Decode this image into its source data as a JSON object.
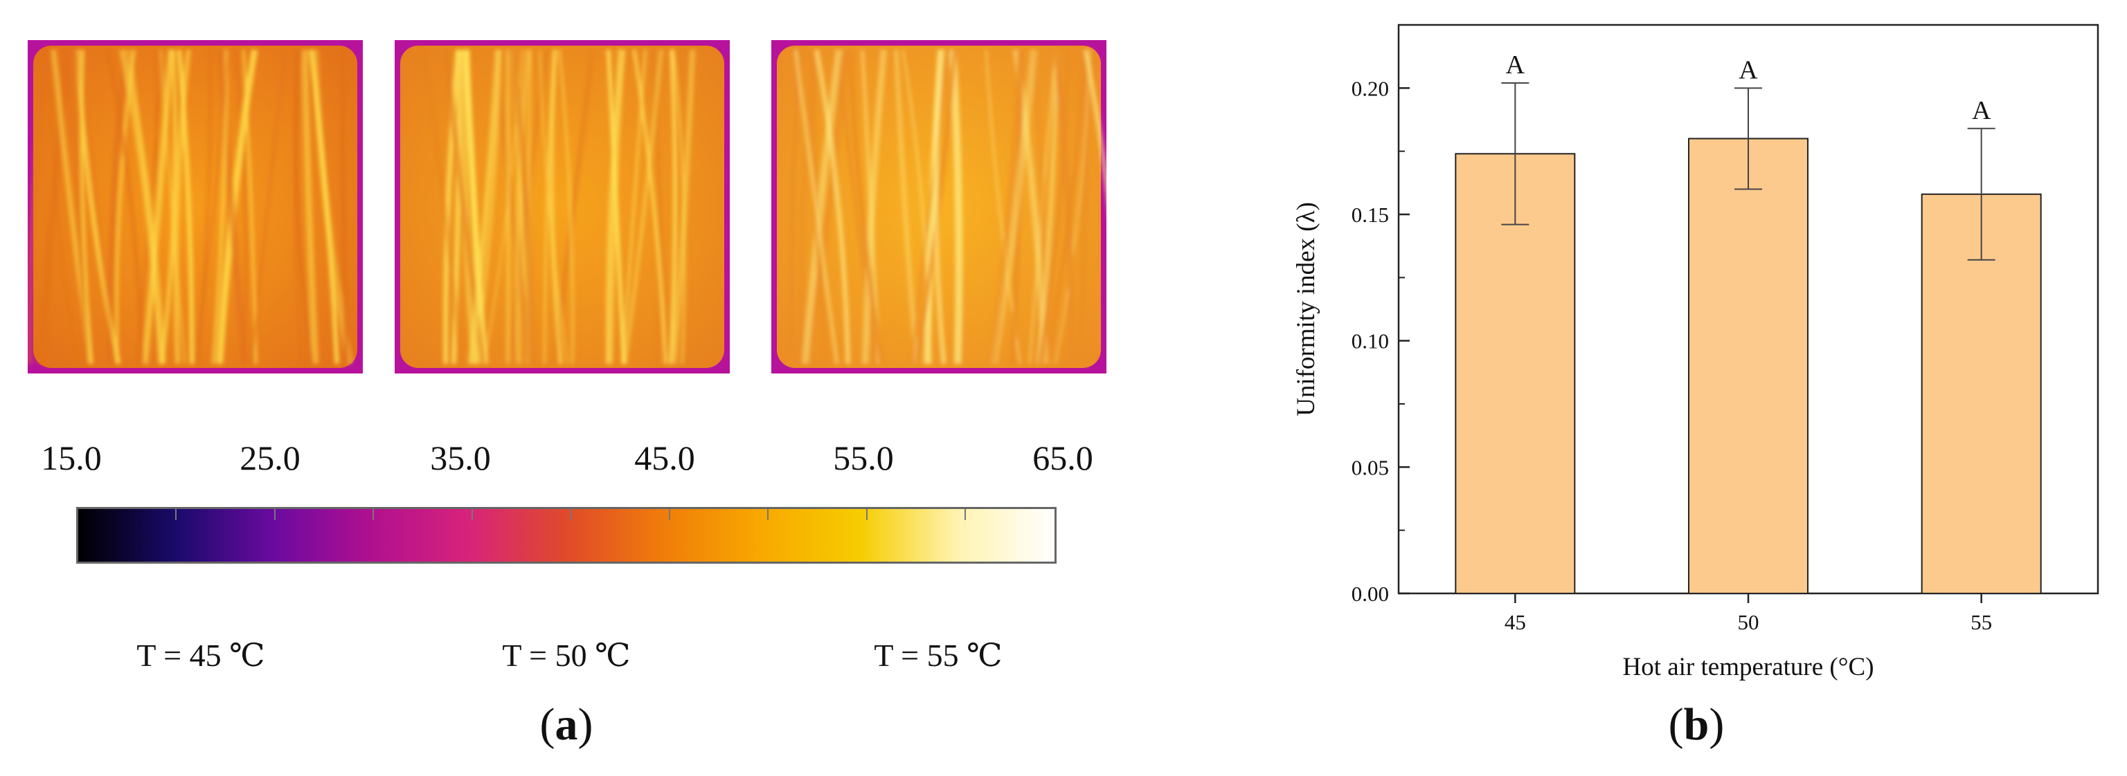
{
  "panel_a": {
    "colorbar_ticks": [
      "15.0",
      "25.0",
      "35.0",
      "45.0",
      "55.0",
      "65.0"
    ],
    "colorbar_colors": [
      "#000000",
      "#1a0a6b",
      "#6a0aa0",
      "#b0108f",
      "#d8237a",
      "#e04a2a",
      "#f07d0a",
      "#f8a800",
      "#f6cc00",
      "#fff3b0",
      "#ffffff"
    ],
    "images": [
      {
        "caption": "T = 45  ℃",
        "base": "#f59a1a",
        "streak": "#ffe04a",
        "dark": "#e2701a"
      },
      {
        "caption": "T = 50  ℃",
        "base": "#f6a31c",
        "streak": "#ffe65a",
        "dark": "#e6801f"
      },
      {
        "caption": "T = 55  ℃",
        "base": "#f8b222",
        "streak": "#fff08a",
        "dark": "#eb8c24"
      }
    ],
    "frame_color": "#b7129c",
    "label_open": "(",
    "label_letter": "a",
    "label_close": ")"
  },
  "chart_data": {
    "type": "bar",
    "categories": [
      "45",
      "50",
      "55"
    ],
    "values": [
      0.174,
      0.18,
      0.158
    ],
    "errors": [
      0.028,
      0.02,
      0.026
    ],
    "annotations": [
      "A",
      "A",
      "A"
    ],
    "xlabel": "Hot air temperature (°C)",
    "ylabel": "Uniformity index (λ)",
    "ylim": [
      0,
      0.225
    ],
    "yticks": [
      "0.00",
      "0.05",
      "0.10",
      "0.15",
      "0.20"
    ],
    "bar_color": "#fdca8e",
    "grid": false
  },
  "panel_b": {
    "label_open": "(",
    "label_letter": "b",
    "label_close": ")"
  }
}
